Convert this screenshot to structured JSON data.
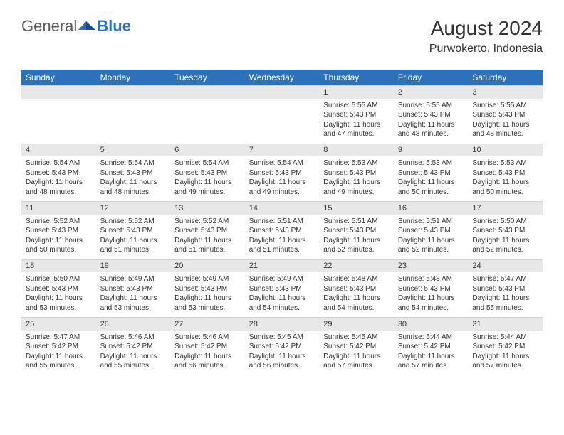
{
  "logo": {
    "text1": "General",
    "text2": "Blue"
  },
  "title": "August 2024",
  "location": "Purwokerto, Indonesia",
  "colors": {
    "header_bg": "#2d72b8",
    "header_text": "#ffffff",
    "daynum_bg": "#e8e8e8",
    "page_bg": "#ffffff",
    "text": "#333333"
  },
  "day_headers": [
    "Sunday",
    "Monday",
    "Tuesday",
    "Wednesday",
    "Thursday",
    "Friday",
    "Saturday"
  ],
  "weeks": [
    {
      "nums": [
        "",
        "",
        "",
        "",
        "1",
        "2",
        "3"
      ],
      "cells": [
        {},
        {},
        {},
        {},
        {
          "sunrise": "Sunrise: 5:55 AM",
          "sunset": "Sunset: 5:43 PM",
          "day1": "Daylight: 11 hours",
          "day2": "and 47 minutes."
        },
        {
          "sunrise": "Sunrise: 5:55 AM",
          "sunset": "Sunset: 5:43 PM",
          "day1": "Daylight: 11 hours",
          "day2": "and 48 minutes."
        },
        {
          "sunrise": "Sunrise: 5:55 AM",
          "sunset": "Sunset: 5:43 PM",
          "day1": "Daylight: 11 hours",
          "day2": "and 48 minutes."
        }
      ]
    },
    {
      "nums": [
        "4",
        "5",
        "6",
        "7",
        "8",
        "9",
        "10"
      ],
      "cells": [
        {
          "sunrise": "Sunrise: 5:54 AM",
          "sunset": "Sunset: 5:43 PM",
          "day1": "Daylight: 11 hours",
          "day2": "and 48 minutes."
        },
        {
          "sunrise": "Sunrise: 5:54 AM",
          "sunset": "Sunset: 5:43 PM",
          "day1": "Daylight: 11 hours",
          "day2": "and 48 minutes."
        },
        {
          "sunrise": "Sunrise: 5:54 AM",
          "sunset": "Sunset: 5:43 PM",
          "day1": "Daylight: 11 hours",
          "day2": "and 49 minutes."
        },
        {
          "sunrise": "Sunrise: 5:54 AM",
          "sunset": "Sunset: 5:43 PM",
          "day1": "Daylight: 11 hours",
          "day2": "and 49 minutes."
        },
        {
          "sunrise": "Sunrise: 5:53 AM",
          "sunset": "Sunset: 5:43 PM",
          "day1": "Daylight: 11 hours",
          "day2": "and 49 minutes."
        },
        {
          "sunrise": "Sunrise: 5:53 AM",
          "sunset": "Sunset: 5:43 PM",
          "day1": "Daylight: 11 hours",
          "day2": "and 50 minutes."
        },
        {
          "sunrise": "Sunrise: 5:53 AM",
          "sunset": "Sunset: 5:43 PM",
          "day1": "Daylight: 11 hours",
          "day2": "and 50 minutes."
        }
      ]
    },
    {
      "nums": [
        "11",
        "12",
        "13",
        "14",
        "15",
        "16",
        "17"
      ],
      "cells": [
        {
          "sunrise": "Sunrise: 5:52 AM",
          "sunset": "Sunset: 5:43 PM",
          "day1": "Daylight: 11 hours",
          "day2": "and 50 minutes."
        },
        {
          "sunrise": "Sunrise: 5:52 AM",
          "sunset": "Sunset: 5:43 PM",
          "day1": "Daylight: 11 hours",
          "day2": "and 51 minutes."
        },
        {
          "sunrise": "Sunrise: 5:52 AM",
          "sunset": "Sunset: 5:43 PM",
          "day1": "Daylight: 11 hours",
          "day2": "and 51 minutes."
        },
        {
          "sunrise": "Sunrise: 5:51 AM",
          "sunset": "Sunset: 5:43 PM",
          "day1": "Daylight: 11 hours",
          "day2": "and 51 minutes."
        },
        {
          "sunrise": "Sunrise: 5:51 AM",
          "sunset": "Sunset: 5:43 PM",
          "day1": "Daylight: 11 hours",
          "day2": "and 52 minutes."
        },
        {
          "sunrise": "Sunrise: 5:51 AM",
          "sunset": "Sunset: 5:43 PM",
          "day1": "Daylight: 11 hours",
          "day2": "and 52 minutes."
        },
        {
          "sunrise": "Sunrise: 5:50 AM",
          "sunset": "Sunset: 5:43 PM",
          "day1": "Daylight: 11 hours",
          "day2": "and 52 minutes."
        }
      ]
    },
    {
      "nums": [
        "18",
        "19",
        "20",
        "21",
        "22",
        "23",
        "24"
      ],
      "cells": [
        {
          "sunrise": "Sunrise: 5:50 AM",
          "sunset": "Sunset: 5:43 PM",
          "day1": "Daylight: 11 hours",
          "day2": "and 53 minutes."
        },
        {
          "sunrise": "Sunrise: 5:49 AM",
          "sunset": "Sunset: 5:43 PM",
          "day1": "Daylight: 11 hours",
          "day2": "and 53 minutes."
        },
        {
          "sunrise": "Sunrise: 5:49 AM",
          "sunset": "Sunset: 5:43 PM",
          "day1": "Daylight: 11 hours",
          "day2": "and 53 minutes."
        },
        {
          "sunrise": "Sunrise: 5:49 AM",
          "sunset": "Sunset: 5:43 PM",
          "day1": "Daylight: 11 hours",
          "day2": "and 54 minutes."
        },
        {
          "sunrise": "Sunrise: 5:48 AM",
          "sunset": "Sunset: 5:43 PM",
          "day1": "Daylight: 11 hours",
          "day2": "and 54 minutes."
        },
        {
          "sunrise": "Sunrise: 5:48 AM",
          "sunset": "Sunset: 5:43 PM",
          "day1": "Daylight: 11 hours",
          "day2": "and 54 minutes."
        },
        {
          "sunrise": "Sunrise: 5:47 AM",
          "sunset": "Sunset: 5:43 PM",
          "day1": "Daylight: 11 hours",
          "day2": "and 55 minutes."
        }
      ]
    },
    {
      "nums": [
        "25",
        "26",
        "27",
        "28",
        "29",
        "30",
        "31"
      ],
      "cells": [
        {
          "sunrise": "Sunrise: 5:47 AM",
          "sunset": "Sunset: 5:42 PM",
          "day1": "Daylight: 11 hours",
          "day2": "and 55 minutes."
        },
        {
          "sunrise": "Sunrise: 5:46 AM",
          "sunset": "Sunset: 5:42 PM",
          "day1": "Daylight: 11 hours",
          "day2": "and 55 minutes."
        },
        {
          "sunrise": "Sunrise: 5:46 AM",
          "sunset": "Sunset: 5:42 PM",
          "day1": "Daylight: 11 hours",
          "day2": "and 56 minutes."
        },
        {
          "sunrise": "Sunrise: 5:45 AM",
          "sunset": "Sunset: 5:42 PM",
          "day1": "Daylight: 11 hours",
          "day2": "and 56 minutes."
        },
        {
          "sunrise": "Sunrise: 5:45 AM",
          "sunset": "Sunset: 5:42 PM",
          "day1": "Daylight: 11 hours",
          "day2": "and 57 minutes."
        },
        {
          "sunrise": "Sunrise: 5:44 AM",
          "sunset": "Sunset: 5:42 PM",
          "day1": "Daylight: 11 hours",
          "day2": "and 57 minutes."
        },
        {
          "sunrise": "Sunrise: 5:44 AM",
          "sunset": "Sunset: 5:42 PM",
          "day1": "Daylight: 11 hours",
          "day2": "and 57 minutes."
        }
      ]
    }
  ]
}
